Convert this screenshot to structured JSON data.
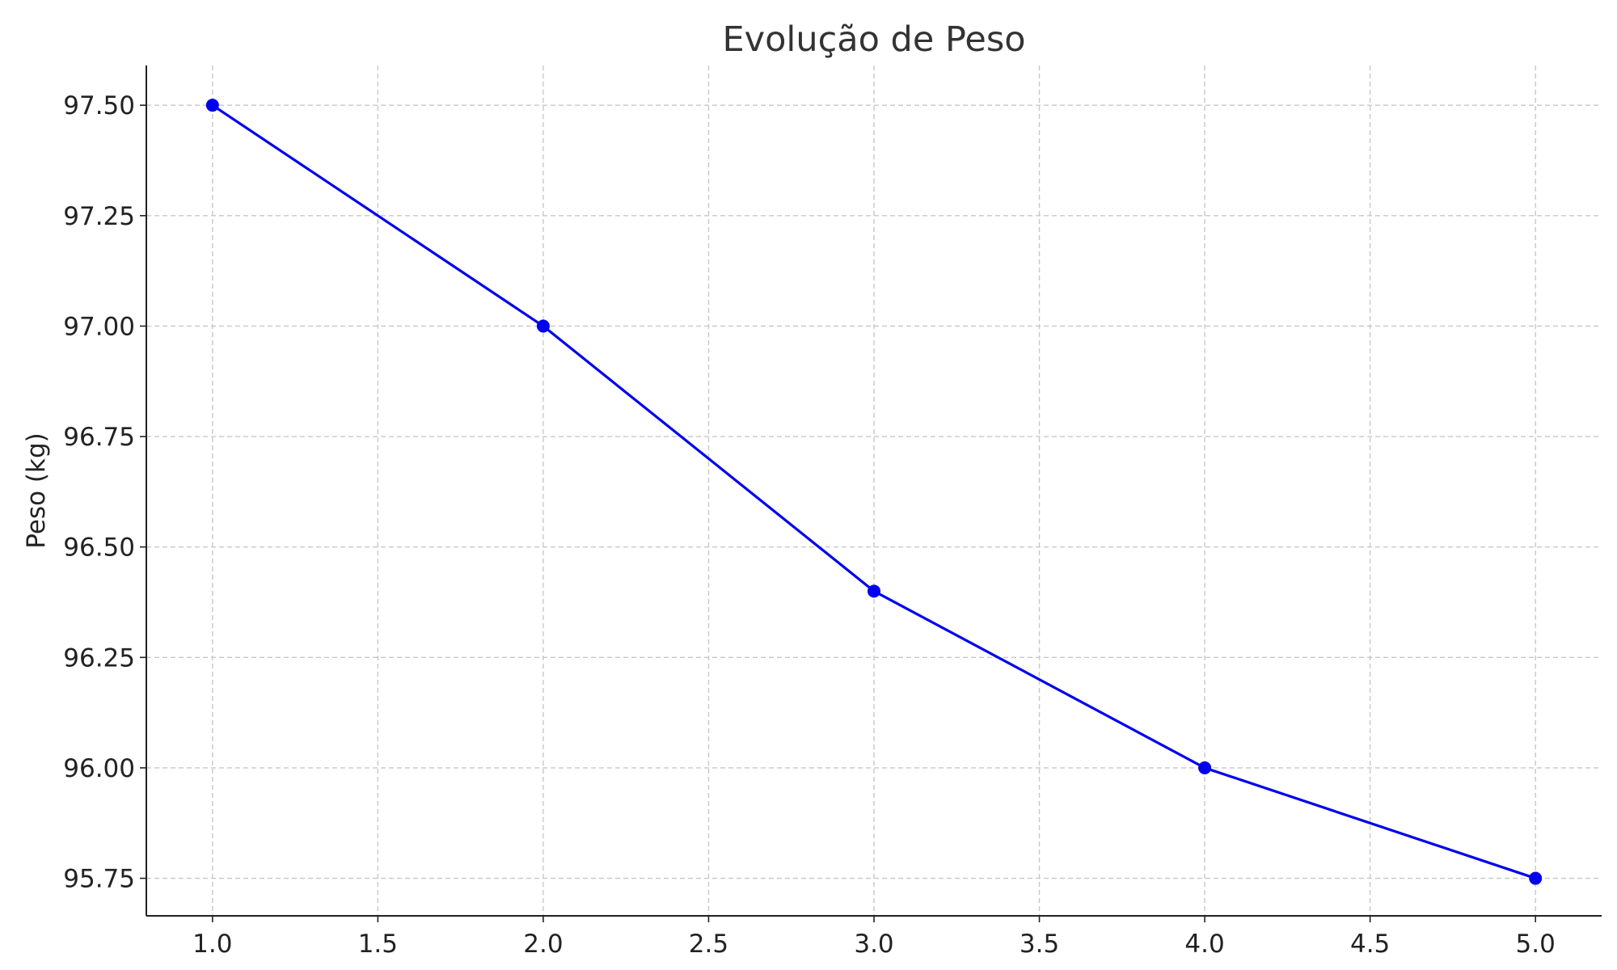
{
  "chart_data": {
    "type": "line",
    "title": "Evolução de Peso",
    "xlabel": "",
    "ylabel": "Peso (kg)",
    "x": [
      1,
      2,
      3,
      4,
      5
    ],
    "series": [
      {
        "values": [
          97.5,
          97.0,
          96.4,
          96.0,
          95.75
        ],
        "color": "#0000ee",
        "marker": "circle"
      }
    ],
    "xlim": [
      0.8,
      5.2
    ],
    "ylim": [
      95.665,
      97.59
    ],
    "x_ticks": [
      1.0,
      1.5,
      2.0,
      2.5,
      3.0,
      3.5,
      4.0,
      4.5,
      5.0
    ],
    "x_tick_labels": [
      "1.0",
      "1.5",
      "2.0",
      "2.5",
      "3.0",
      "3.5",
      "4.0",
      "4.5",
      "5.0"
    ],
    "y_ticks": [
      95.75,
      96.0,
      96.25,
      96.5,
      96.75,
      97.0,
      97.25,
      97.5
    ],
    "y_tick_labels": [
      "95.75",
      "96.00",
      "96.25",
      "96.50",
      "96.75",
      "97.00",
      "97.25",
      "97.50"
    ],
    "grid": true,
    "grid_style": "dashed",
    "legend": "none"
  }
}
